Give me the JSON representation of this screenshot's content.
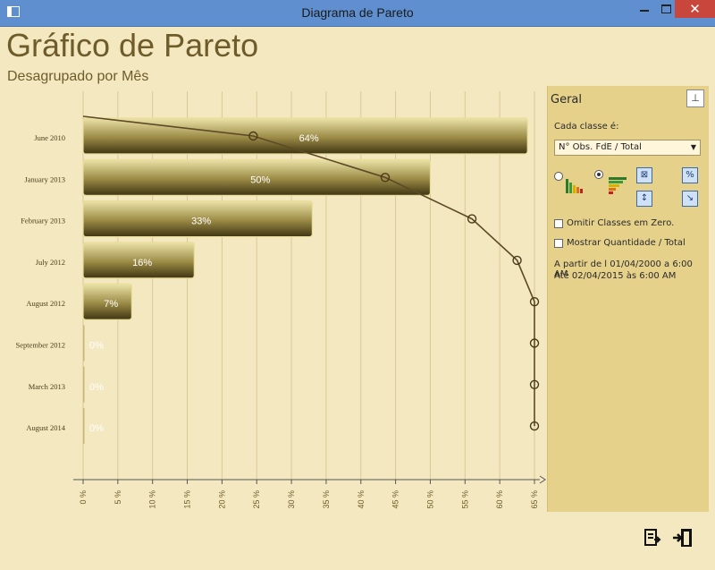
{
  "window": {
    "title": "Diagrama de Pareto"
  },
  "header": {
    "title": "Gráfico de Pareto",
    "subtitle": "Desagrupado por Mês"
  },
  "panel": {
    "title": "Geral",
    "class_label": "Cada classe é:",
    "class_value": "N° Obs. FdE / Total",
    "omit_zero_label": "Omitir Classes em Zero.",
    "show_qty_label": "Mostrar Quantidade / Total",
    "range_from": "A partir de l 01/04/2000 a 6:00 AM",
    "range_to": "Até 02/04/2015 às 6:00 AM"
  },
  "colors": {
    "background": "#f4e8c0",
    "panel": "#e6d18b",
    "bar_dark": "#4f4318",
    "bar_light": "#ece3a8",
    "line": "#5e4a26"
  },
  "chart_data": {
    "type": "bar",
    "orientation": "horizontal",
    "categories": [
      "June 2010",
      "January 2013",
      "February 2013",
      "July 2012",
      "August 2012",
      "September 2012",
      "March 2013",
      "August 2014"
    ],
    "values": [
      64,
      50,
      33,
      16,
      7,
      0,
      0,
      0
    ],
    "value_labels": [
      "64%",
      "50%",
      "33%",
      "16%",
      "7%",
      "0%",
      "0%",
      "0%"
    ],
    "cumulative": [
      24.5,
      43.5,
      56,
      62.5,
      65,
      65,
      65,
      65
    ],
    "cumulative_start": 0,
    "xticks": [
      "0 %",
      "5 %",
      "10 %",
      "15 %",
      "20 %",
      "25 %",
      "30 %",
      "35 %",
      "40 %",
      "45 %",
      "50 %",
      "55 %",
      "60 %",
      "65 %"
    ],
    "xlim": [
      0,
      66
    ],
    "grid": true
  }
}
